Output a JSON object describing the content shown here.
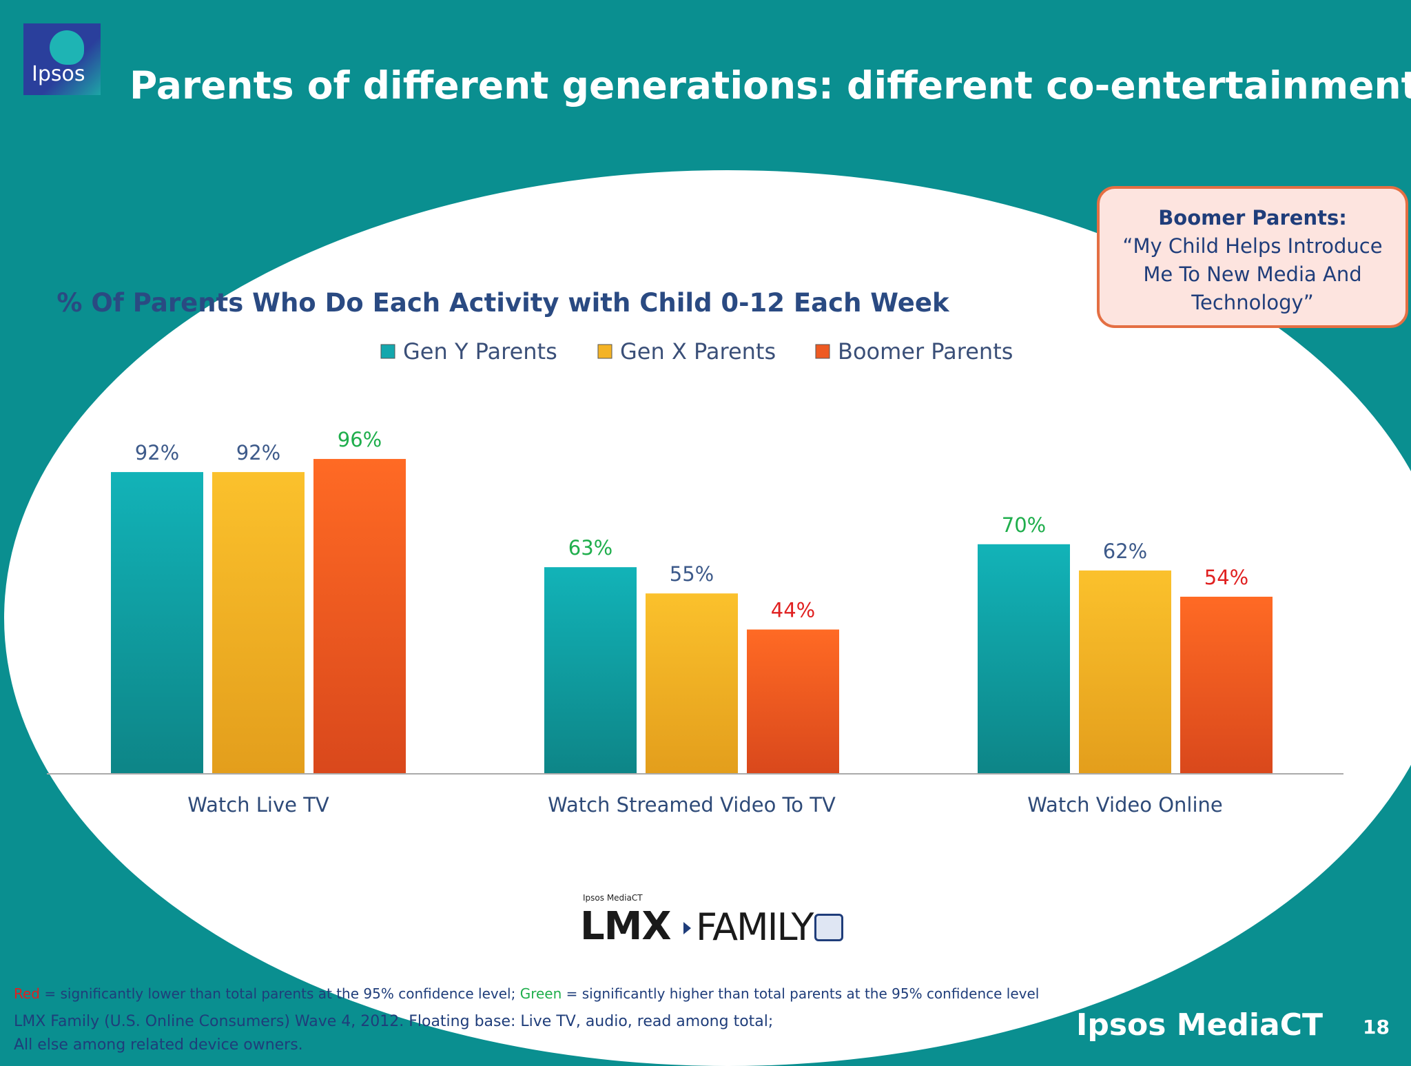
{
  "slide": {
    "title": "Parents of different generations: different co-entertainment",
    "logo_text": "Ipsos",
    "page_number": "18",
    "brand": "Ipsos MediaCT"
  },
  "callout": {
    "heading": "Boomer Parents:",
    "quote": "“My Child Helps Introduce Me To New  Media And Technology”"
  },
  "lmx_logo": {
    "small": "Ipsos MediaCT",
    "main": "LMX",
    "family": "FAMILY"
  },
  "footnotes": {
    "red_word": "Red",
    "red_text": " = significantly lower than total parents at the 95% confidence level; ",
    "green_word": "Green",
    "green_text": " = significantly higher than total parents at the 95% confidence level",
    "source_line1": "LMX Family (U.S. Online Consumers) Wave 4, 2012.  Floating base: Live TV, audio, read among total;",
    "source_line2": "All else among related device owners."
  },
  "colors": {
    "background": "#0a8f90",
    "gen_y": "#14a7ad",
    "gen_x": "#f4b325",
    "boomer": "#ee5a22",
    "label_normal": "#3d5a8a",
    "label_green": "#1fae4c",
    "label_red": "#e02020"
  },
  "chart_data": {
    "type": "bar",
    "title": "% Of Parents Who Do Each Activity with Child 0-12 Each Week",
    "categories": [
      "Watch Live TV",
      "Watch Streamed Video To TV",
      "Watch Video Online"
    ],
    "series": [
      {
        "name": "Gen Y Parents",
        "values": [
          92,
          63,
          70
        ],
        "labels": [
          "92%",
          "63%",
          "70%"
        ],
        "label_status": [
          "normal",
          "green",
          "green"
        ]
      },
      {
        "name": "Gen X Parents",
        "values": [
          92,
          55,
          62
        ],
        "labels": [
          "92%",
          "55%",
          "62%"
        ],
        "label_status": [
          "normal",
          "normal",
          "normal"
        ]
      },
      {
        "name": "Boomer Parents",
        "values": [
          96,
          44,
          54
        ],
        "labels": [
          "96%",
          "44%",
          "54%"
        ],
        "label_status": [
          "green",
          "red",
          "red"
        ]
      }
    ],
    "ylim": [
      0,
      100
    ],
    "grid": false,
    "legend": "top"
  }
}
